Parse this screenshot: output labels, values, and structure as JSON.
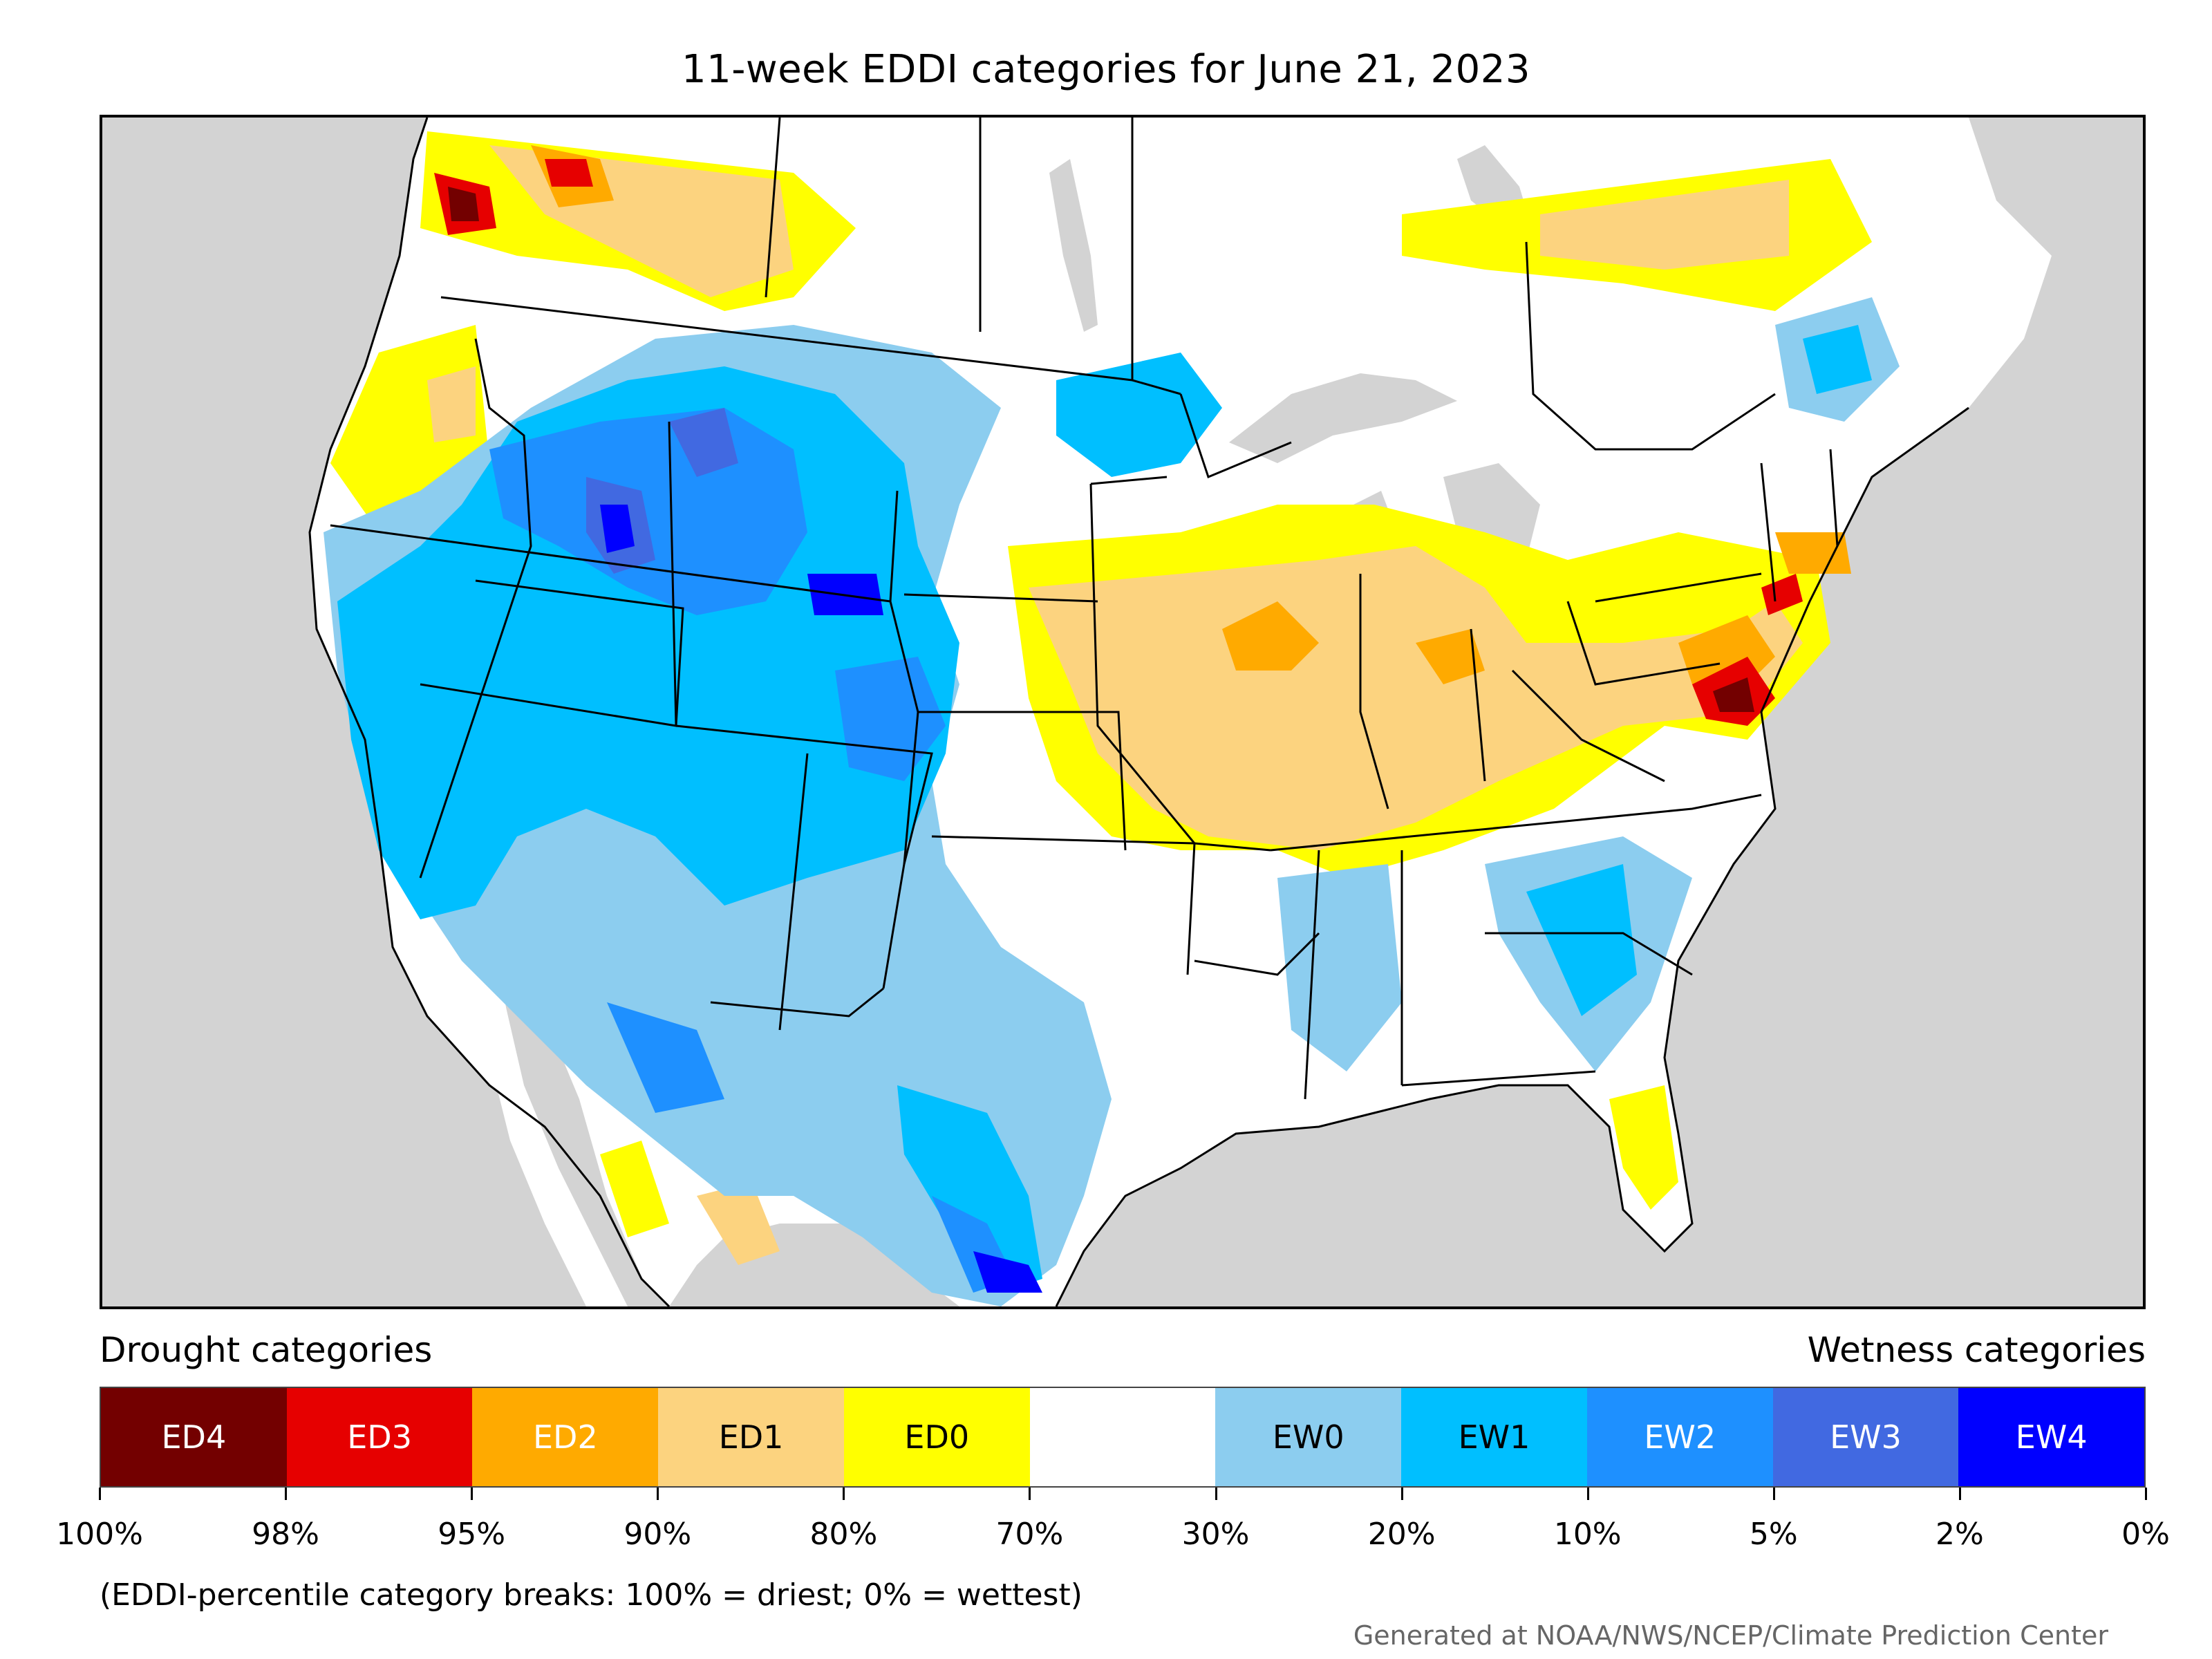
{
  "title": "11-week EDDI categories for June 21, 2023",
  "legend": {
    "drought_title": "Drought categories",
    "wetness_title": "Wetness categories",
    "categories": [
      {
        "label": "ED4",
        "color": "#730000",
        "text_color": "#ffffff"
      },
      {
        "label": "ED3",
        "color": "#e60000",
        "text_color": "#ffffff"
      },
      {
        "label": "ED2",
        "color": "#ffaa00",
        "text_color": "#ffffff"
      },
      {
        "label": "ED1",
        "color": "#fcd37f",
        "text_color": "#000000"
      },
      {
        "label": "ED0",
        "color": "#ffff00",
        "text_color": "#000000"
      },
      {
        "label": "",
        "color": "#ffffff",
        "text_color": "#000000"
      },
      {
        "label": "EW0",
        "color": "#8ccdef",
        "text_color": "#000000"
      },
      {
        "label": "EW1",
        "color": "#00bfff",
        "text_color": "#000000"
      },
      {
        "label": "EW2",
        "color": "#1e90ff",
        "text_color": "#ffffff"
      },
      {
        "label": "EW3",
        "color": "#4169e1",
        "text_color": "#ffffff"
      },
      {
        "label": "EW4",
        "color": "#0000ff",
        "text_color": "#ffffff"
      }
    ],
    "tick_labels": [
      "100%",
      "98%",
      "95%",
      "90%",
      "80%",
      "70%",
      "30%",
      "20%",
      "10%",
      "5%",
      "2%",
      "0%"
    ]
  },
  "note": "(EDDI-percentile category breaks: 100% = driest; 0% = wettest)",
  "credit": "Generated at NOAA/NWS/NCEP/Climate Prediction Center",
  "map": {
    "background_color": "#d3d3d3",
    "land_color": "#ffffff",
    "border_color": "#000000"
  }
}
